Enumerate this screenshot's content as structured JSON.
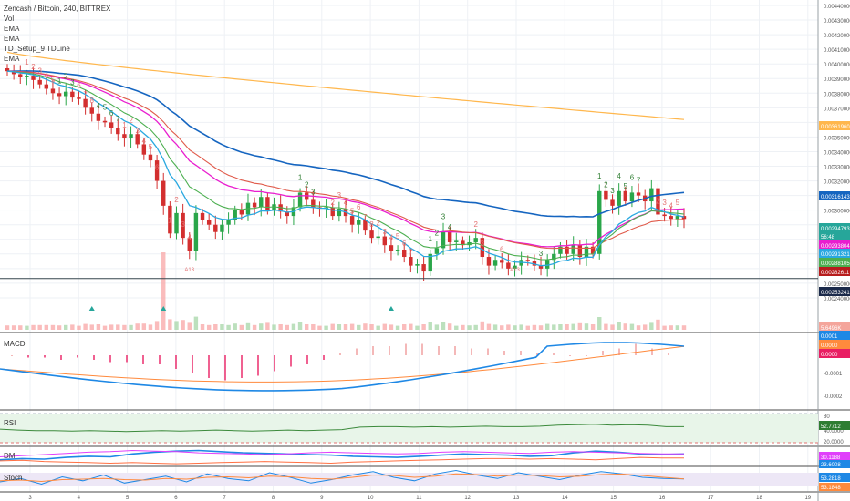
{
  "header": {
    "title": "Zencash / Bitcoin, 240, BITTREX",
    "indicator_labels": [
      "Vol",
      "EMA",
      "EMA",
      "TD_Setup_9 TDLine",
      "EMA"
    ]
  },
  "colors": {
    "up": "#26a69a",
    "down": "#ef5350",
    "up_candle": "#2aa64a",
    "down_candle": "#d32f2f",
    "ema_blue": "#1565c0",
    "ema_magenta": "#e91ecf",
    "ema_red": "#e05a4a",
    "ema_green": "#4caf50",
    "ema_orange": "#ffb74d",
    "ema_lightblue": "#29a8e0",
    "macd_line": "#1e88e5",
    "signal_line": "#ff8a3d",
    "rsi_line": "#3c8a3c",
    "dmi_plus": "#1e88e5",
    "dmi_minus": "#ff7043",
    "dmi_adx": "#e040fb",
    "stoch_k": "#1e88e5",
    "stoch_d": "#ff8a3d",
    "grid": "#eef1f5"
  },
  "chart_data": [
    {
      "type": "candlestick",
      "title": "Zencash / Bitcoin, 240, BITTREX",
      "xlabel": "",
      "ylabel": "",
      "ylim": [
        0.0023,
        0.0044
      ],
      "grid": true,
      "x_ticks": [
        "3",
        "4",
        "5",
        "6",
        "7",
        "8",
        "9",
        "10",
        "11",
        "12",
        "13",
        "14",
        "15",
        "16",
        "17",
        "18",
        "19"
      ],
      "y_ticks": [
        "0.00440000",
        "0.00430000",
        "0.00420000",
        "0.00410000",
        "0.00400000",
        "0.00390000",
        "0.00380000",
        "0.00370000",
        "0.00360000",
        "0.00350000",
        "0.00340000",
        "0.00330000",
        "0.00320000",
        "0.00310000",
        "0.00300000",
        "0.00290000",
        "0.00280000",
        "0.00270000",
        "0.00260000",
        "0.00250000",
        "0.00240000"
      ],
      "close": [
        0.00395,
        0.00393,
        0.00391,
        0.00392,
        0.00389,
        0.00386,
        0.00383,
        0.0038,
        0.00378,
        0.00381,
        0.00377,
        0.00376,
        0.0037,
        0.00366,
        0.00361,
        0.0036,
        0.00356,
        0.00352,
        0.00349,
        0.00352,
        0.00345,
        0.00338,
        0.00334,
        0.0032,
        0.00303,
        0.00284,
        0.00298,
        0.00281,
        0.00272,
        0.00298,
        0.00293,
        0.0029,
        0.00285,
        0.0029,
        0.00293,
        0.003,
        0.00297,
        0.00305,
        0.00302,
        0.00309,
        0.003,
        0.00304,
        0.00299,
        0.00296,
        0.00302,
        0.00312,
        0.00307,
        0.00302,
        0.00301,
        0.00302,
        0.00296,
        0.00301,
        0.00296,
        0.0029,
        0.00293,
        0.00286,
        0.00281,
        0.00282,
        0.00276,
        0.00272,
        0.00273,
        0.00268,
        0.00262,
        0.00263,
        0.00258,
        0.0027,
        0.00274,
        0.00285,
        0.00278,
        0.00279,
        0.00276,
        0.00278,
        0.00281,
        0.00268,
        0.00262,
        0.00266,
        0.00264,
        0.0026,
        0.00262,
        0.00266,
        0.00265,
        0.00262,
        0.0026,
        0.00266,
        0.0027,
        0.00275,
        0.0027,
        0.00276,
        0.00268,
        0.00275,
        0.0027,
        0.00313,
        0.00307,
        0.00303,
        0.00313,
        0.00306,
        0.00312,
        0.0031,
        0.00306,
        0.00315,
        0.00297,
        0.00296,
        0.00294,
        0.00296,
        0.00294
      ],
      "series": [
        {
          "name": "EMA",
          "color": "#1565c0",
          "current": "0.00316143"
        },
        {
          "name": "EMA",
          "color": "#e91ecf",
          "current": "0.00293804"
        },
        {
          "name": "EMA",
          "color": "#e05a4a",
          "current": "0.00282611"
        },
        {
          "name": "EMA",
          "color": "#4caf50",
          "current": "0.00288105"
        },
        {
          "name": "EMA",
          "color": "#ffb74d",
          "current": "0.00361960"
        },
        {
          "name": "EMA",
          "color": "#29a8e0",
          "current": "0.00291321"
        }
      ],
      "price_tags": [
        {
          "text": "0.00361960",
          "color": "#ffb74d"
        },
        {
          "text": "0.00316143",
          "color": "#1565c0"
        },
        {
          "text": "0.00294793",
          "color": "#26a69a"
        },
        {
          "text": "56:48",
          "color": "#26a69a"
        },
        {
          "text": "0.00293804",
          "color": "#e91ecf"
        },
        {
          "text": "0.00291321",
          "color": "#29a8e0"
        },
        {
          "text": "0.00288105",
          "color": "#4caf50"
        },
        {
          "text": "0.00282611",
          "color": "#b71c1c"
        },
        {
          "text": "0.00253241",
          "color": "#1b2a4a"
        }
      ],
      "td_line": {
        "value": 0.0025324
      },
      "td_counts_up": [
        "1",
        "2",
        "3",
        "4",
        "5",
        "6",
        "7"
      ],
      "td_counts_down": [
        "2",
        "3",
        "4",
        "5",
        "6",
        "7",
        "8",
        "9"
      ],
      "td_markers": [
        "A13",
        "A13",
        "A13"
      ],
      "volume_tag": "5.6496K"
    },
    {
      "type": "bar",
      "title": "MACD",
      "y_ticks": [
        "0.0001",
        "-0.0001",
        "-0.0002"
      ],
      "tags": [
        "0.0001",
        "0.0000",
        "0.0000"
      ],
      "histogram": [
        0,
        -1e-05,
        -1e-05,
        -2e-05,
        -1e-05,
        -2e-05,
        -3e-05,
        -3e-05,
        -4e-05,
        -4e-05,
        -6e-05,
        -8e-05,
        -0.0001,
        -0.00011,
        -0.0001,
        -9e-05,
        -7e-05,
        -5e-05,
        -4e-05,
        -2e-05,
        1e-05,
        3e-05,
        4e-05,
        4e-05,
        5e-05,
        5e-05,
        4e-05,
        4e-05,
        3e-05,
        3e-05,
        2e-05,
        2e-05,
        1e-05,
        1e-05,
        0,
        0,
        2e-05,
        3e-05,
        5e-05,
        3e-05,
        1e-05
      ]
    },
    {
      "type": "line",
      "title": "RSI",
      "y_ticks": [
        "80",
        "40.0000",
        "20.0000"
      ],
      "tags": [
        "52.7712"
      ],
      "ylim": [
        20,
        80
      ],
      "values": [
        48,
        46,
        45,
        45,
        44,
        45,
        44,
        43,
        44,
        45,
        44,
        45,
        46,
        45,
        44,
        45,
        46,
        45,
        46,
        47,
        52,
        53,
        53,
        52,
        53,
        52,
        53,
        54,
        53,
        53,
        54,
        56,
        57,
        58,
        56,
        57,
        56,
        53,
        53
      ]
    },
    {
      "type": "line",
      "title": "DMI",
      "tags": [
        "30.1188",
        "23.6008"
      ],
      "series": [
        {
          "name": "",
          "values": [
            20,
            22,
            21,
            24,
            26,
            25,
            30,
            33,
            35,
            36,
            34,
            32,
            31,
            30,
            29,
            28,
            26,
            25,
            24,
            26,
            28,
            30,
            29,
            28,
            26,
            27,
            32,
            35,
            33,
            30,
            29,
            30
          ]
        },
        {
          "name": "",
          "values": [
            18,
            19,
            17,
            16,
            15,
            14,
            15,
            14,
            13,
            14,
            15,
            16,
            17,
            16,
            15,
            14,
            16,
            17,
            18,
            19,
            20,
            21,
            22,
            22,
            21,
            22,
            21,
            20,
            22,
            24,
            23,
            23
          ]
        },
        {
          "name": "",
          "values": [
            25,
            27,
            29,
            31,
            33,
            34,
            36,
            35,
            34,
            32,
            31,
            30,
            29,
            30,
            32,
            33,
            32,
            31,
            30,
            31,
            33,
            34,
            33,
            32,
            31,
            33,
            34,
            33,
            32,
            31,
            30,
            30
          ]
        }
      ]
    },
    {
      "type": "line",
      "title": "Stoch",
      "tags": [
        "53.2818",
        "53.1848"
      ],
      "ylim": [
        0,
        100
      ],
      "series": [
        {
          "name": "",
          "values": [
            40,
            55,
            30,
            62,
            45,
            70,
            35,
            50,
            65,
            40,
            75,
            55,
            45,
            80,
            60,
            35,
            50,
            70,
            85,
            60,
            45,
            75,
            90,
            70,
            55,
            80,
            65,
            50,
            70,
            85,
            75,
            60,
            55,
            53
          ]
        },
        {
          "name": "",
          "values": [
            45,
            48,
            42,
            50,
            52,
            55,
            50,
            48,
            55,
            52,
            60,
            62,
            58,
            65,
            62,
            55,
            52,
            60,
            70,
            68,
            60,
            65,
            75,
            72,
            65,
            70,
            68,
            62,
            65,
            72,
            74,
            68,
            60,
            53
          ]
        }
      ]
    }
  ]
}
